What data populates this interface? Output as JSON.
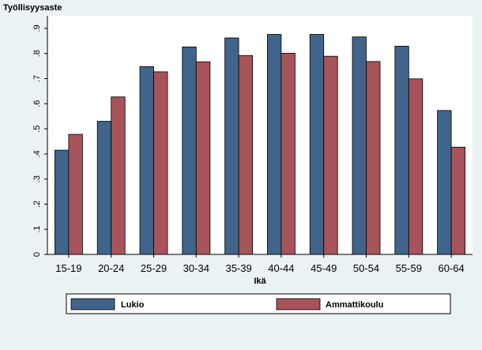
{
  "chart_data": {
    "type": "bar",
    "ylabel": "Työllisyysaste",
    "xlabel": "Ikä",
    "categories": [
      "15-19",
      "20-24",
      "25-29",
      "30-34",
      "35-39",
      "40-44",
      "45-49",
      "50-54",
      "55-59",
      "60-64"
    ],
    "series": [
      {
        "name": "Lukio",
        "color": "#41648a",
        "values": [
          0.415,
          0.53,
          0.748,
          0.826,
          0.862,
          0.876,
          0.876,
          0.866,
          0.829,
          0.573
        ]
      },
      {
        "name": "Ammattikoulu",
        "color": "#a7535a",
        "values": [
          0.478,
          0.627,
          0.727,
          0.767,
          0.792,
          0.801,
          0.789,
          0.768,
          0.699,
          0.427
        ]
      }
    ],
    "yticks": [
      "0",
      ".1",
      ".2",
      ".3",
      ".4",
      ".5",
      ".6",
      ".7",
      ".8",
      ".9"
    ],
    "ylim": [
      0,
      0.95
    ],
    "grid": false,
    "legend_position": "bottom"
  }
}
